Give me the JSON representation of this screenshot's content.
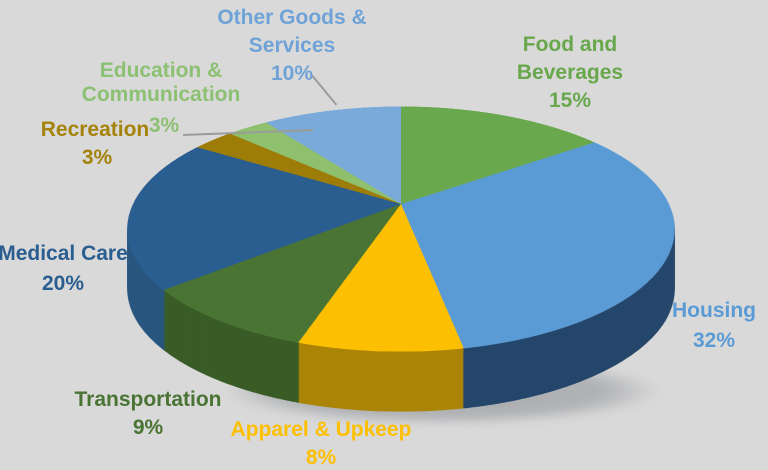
{
  "ui": {
    "background": "#d9d9d9",
    "leader_line_color": "#9b9b98",
    "shadow_color": "#80848a"
  },
  "chart_data": {
    "type": "pie",
    "three_d": true,
    "title": "",
    "unit": "%",
    "start_angle_deg": 0,
    "direction": "clockwise",
    "legend": "none — direct category data labels with percentages",
    "categories": [
      "Food and Beverages",
      "Housing",
      "Apparel & Upkeep",
      "Transportation",
      "Medical Care",
      "Recreation",
      "Education & Communication",
      "Other Goods & Services"
    ],
    "values": [
      15,
      32,
      8,
      9,
      20,
      3,
      3,
      10
    ],
    "slices": [
      {
        "label": "Food and Beverages",
        "value": 15,
        "color": "#6aa84e",
        "side_color": "#4b7c35",
        "label_color": "#69a74d"
      },
      {
        "label": "Housing",
        "value": 32,
        "color": "#5b9bd5",
        "side_color": "#24466a",
        "label_color": "#5b9bd5"
      },
      {
        "label": "Apparel & Upkeep",
        "value": 8,
        "color": "#fdbf01",
        "side_color": "#ab8405",
        "label_color": "#fdbf01"
      },
      {
        "label": "Transportation",
        "value": 9,
        "color": "#4a7433",
        "side_color": "#395b25",
        "label_color": "#4a7433"
      },
      {
        "label": "Medical Care",
        "value": 20,
        "color": "#2a5d90",
        "side_color": "#27557e",
        "label_color": "#2a5d90"
      },
      {
        "label": "Recreation",
        "value": 3,
        "color": "#9d7c08",
        "side_color": "#6f5705",
        "label_color": "#a5820a"
      },
      {
        "label": "Education & Communication",
        "value": 3,
        "color": "#8ec06d",
        "side_color": "#6b9450",
        "label_color": "#8cc073"
      },
      {
        "label": "Other Goods & Services",
        "value": 10,
        "color": "#79aad9",
        "side_color": "#5d86ad",
        "label_color": "#6fa3d8"
      }
    ]
  },
  "callouts": {
    "other_goods": {
      "line1": "Other Goods &",
      "line2": "Services",
      "pct": "10%"
    },
    "food": {
      "line1": "Food and",
      "line2": "Beverages",
      "pct": "15%"
    },
    "education": {
      "line1": "Education &",
      "line2": "Communication",
      "pct": "3%"
    },
    "recreation": {
      "line1": "Recreation",
      "pct": "3%"
    },
    "medical": {
      "line1": "Medical Care",
      "pct": "20%"
    },
    "transportation": {
      "line1": "Transportation",
      "pct": "9%"
    },
    "apparel": {
      "line1": "Apparel & Upkeep",
      "pct": "8%"
    },
    "housing": {
      "line1": "Housing",
      "pct": "32%"
    }
  }
}
